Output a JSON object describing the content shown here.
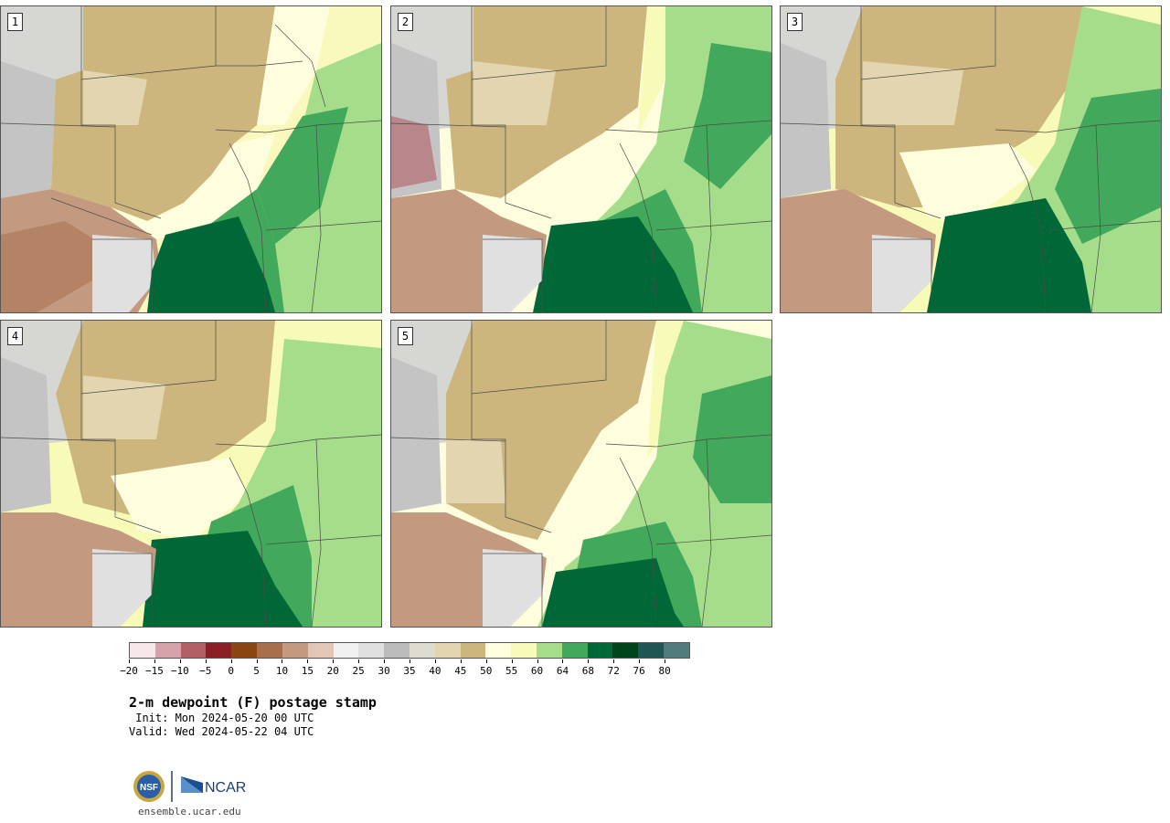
{
  "panels": [
    {
      "label": "1"
    },
    {
      "label": "2"
    },
    {
      "label": "3"
    },
    {
      "label": "4"
    },
    {
      "label": "5"
    }
  ],
  "colorbar": {
    "ticks": [
      "−20",
      "−15",
      "−10",
      "−5",
      "0",
      "5",
      "10",
      "15",
      "20",
      "25",
      "30",
      "35",
      "40",
      "45",
      "50",
      "55",
      "60",
      "64",
      "68",
      "72",
      "76",
      "80"
    ],
    "colors": [
      "#f5e6ea",
      "#d7a3aa",
      "#b35f66",
      "#8a1f24",
      "#8b4513",
      "#a86f4d",
      "#c39a80",
      "#e2c7b6",
      "#f1f1f1",
      "#e0e0e0",
      "#bcbcbc",
      "#dedcd0",
      "#e3d5b0",
      "#cdb67e",
      "#fefede",
      "#f8fbb8",
      "#a6dd8b",
      "#42a95c",
      "#006837",
      "#00441b",
      "#1f5653",
      "#507a7c"
    ]
  },
  "title": "2-m dewpoint (F) postage stamp",
  "init": " Init: Mon 2024-05-20 00 UTC",
  "valid": "Valid: Wed 2024-05-22 04 UTC",
  "logo": {
    "nsf": "NSF",
    "ncar": "NCAR"
  },
  "url": "ensemble.ucar.edu"
}
